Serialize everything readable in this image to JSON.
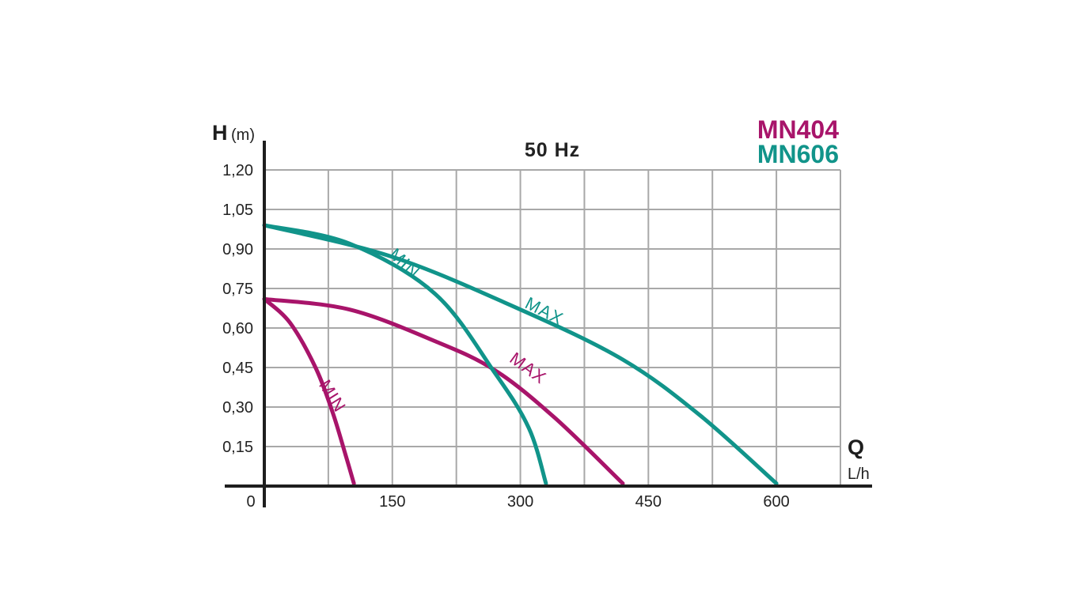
{
  "chart_data": {
    "type": "line",
    "title": "50 Hz",
    "y_axis": {
      "variable": "H",
      "unit": "(m)",
      "range": [
        0,
        1.2
      ],
      "ticks": [
        "0,15",
        "0,30",
        "0,45",
        "0,60",
        "0,75",
        "0,90",
        "1,05",
        "1,20"
      ]
    },
    "x_axis": {
      "variable": "Q",
      "unit": "L/h",
      "range": [
        0,
        675
      ],
      "ticks": [
        "0",
        "150",
        "300",
        "450",
        "600"
      ]
    },
    "grid": true,
    "legend": [
      {
        "name": "MN404",
        "color": "#a8146a"
      },
      {
        "name": "MN606",
        "color": "#11948a"
      }
    ],
    "series": [
      {
        "model": "MN404",
        "label": "MIN",
        "color": "#a8146a",
        "points": [
          [
            0,
            0.71
          ],
          [
            30,
            0.62
          ],
          [
            60,
            0.45
          ],
          [
            80,
            0.28
          ],
          [
            95,
            0.12
          ],
          [
            105,
            0.01
          ]
        ]
      },
      {
        "model": "MN404",
        "label": "MAX",
        "color": "#a8146a",
        "points": [
          [
            0,
            0.71
          ],
          [
            100,
            0.67
          ],
          [
            200,
            0.55
          ],
          [
            270,
            0.44
          ],
          [
            340,
            0.26
          ],
          [
            420,
            0.01
          ]
        ]
      },
      {
        "model": "MN606",
        "label": "MIN",
        "color": "#11948a",
        "points": [
          [
            0,
            0.99
          ],
          [
            100,
            0.92
          ],
          [
            200,
            0.73
          ],
          [
            270,
            0.43
          ],
          [
            310,
            0.22
          ],
          [
            330,
            0.01
          ]
        ]
      },
      {
        "model": "MN606",
        "label": "MAX",
        "color": "#11948a",
        "points": [
          [
            0,
            0.99
          ],
          [
            150,
            0.87
          ],
          [
            300,
            0.67
          ],
          [
            420,
            0.48
          ],
          [
            510,
            0.27
          ],
          [
            600,
            0.01
          ]
        ]
      }
    ]
  }
}
